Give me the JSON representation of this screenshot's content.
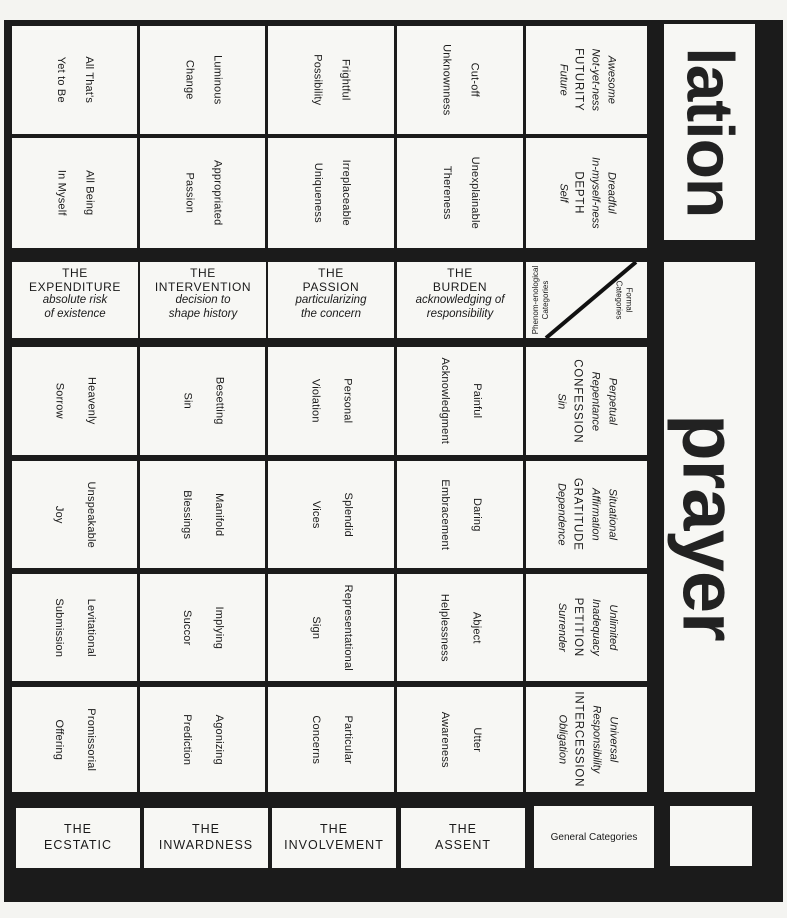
{
  "banners": {
    "top": "lation",
    "right": "prayer"
  },
  "corner": {
    "formal": "Formal Categories",
    "phenom": "Phenom-enological Categories"
  },
  "upper_headers": [
    {
      "l1": "Awesome",
      "l2": "Not-yet-ness",
      "cap": "FUTURITY",
      "tail": "Future"
    },
    {
      "l1": "Dreadful",
      "l2": "In-myself-ness",
      "cap": "DEPTH",
      "tail": "Self"
    }
  ],
  "upper_rows": [
    {
      "c1": [
        "Cut-off",
        "Unknownness"
      ],
      "c2": [
        "Unexplainable",
        "Thereness"
      ]
    },
    {
      "c1": [
        "Frightful",
        "Possibility"
      ],
      "c2": [
        "Irreplaceable",
        "Uniqueness"
      ]
    },
    {
      "c1": [
        "Luminous",
        "Change"
      ],
      "c2": [
        "Appropriated",
        "Passion"
      ]
    },
    {
      "c1": [
        "All That's",
        "Yet to Be"
      ],
      "c2": [
        "All Being",
        "In Myself"
      ]
    }
  ],
  "middle_headers": [
    {
      "title": [
        "THE",
        "BURDEN"
      ],
      "sub": [
        "acknowledging of",
        "responsibility"
      ]
    },
    {
      "title": [
        "THE",
        "PASSION"
      ],
      "sub": [
        "particularizing",
        "the concern"
      ]
    },
    {
      "title": [
        "THE",
        "INTERVENTION"
      ],
      "sub": [
        "decision to",
        "shape history"
      ]
    },
    {
      "title": [
        "THE",
        "EXPENDITURE"
      ],
      "sub": [
        "absolute risk",
        "of existence"
      ]
    }
  ],
  "lower_headers": [
    {
      "l1": "Perpetual",
      "l2": "Repentance",
      "cap": "CONFESSION",
      "tail": "Sin"
    },
    {
      "l1": "Situational",
      "l2": "Affirmation",
      "cap": "GRATITUDE",
      "tail": "Dependence"
    },
    {
      "l1": "Unlimited",
      "l2": "Inadequacy",
      "cap": "PETITION",
      "tail": "Surrender"
    },
    {
      "l1": "Universal",
      "l2": "Responsibility",
      "cap": "INTERCESSION",
      "tail": "Obligation"
    }
  ],
  "lower_rows": [
    {
      "cells": [
        [
          "Painful",
          "Acknowledgment"
        ],
        [
          "Daring",
          "Embracement"
        ],
        [
          "Abject",
          "Helplessness"
        ],
        [
          "Utter",
          "Awareness"
        ]
      ]
    },
    {
      "cells": [
        [
          "Personal",
          "Violation"
        ],
        [
          "Splendid",
          "Vices"
        ],
        [
          "Representational",
          "Sign"
        ],
        [
          "Particular",
          "Concerns"
        ]
      ]
    },
    {
      "cells": [
        [
          "Besetting",
          "Sin"
        ],
        [
          "Manifold",
          "Blessings"
        ],
        [
          "Implying",
          "Succor"
        ],
        [
          "Agonizing",
          "Prediction"
        ]
      ]
    },
    {
      "cells": [
        [
          "Heavenly",
          "Sorrow"
        ],
        [
          "Unspeakable",
          "Joy"
        ],
        [
          "Levitational",
          "Submission"
        ],
        [
          "Promissorial",
          "Offering"
        ]
      ]
    }
  ],
  "bottom": {
    "general": "General Categories",
    "items": [
      [
        "THE",
        "ASSENT"
      ],
      [
        "THE",
        "INVOLVEMENT"
      ],
      [
        "THE",
        "INWARDNESS"
      ],
      [
        "THE",
        "ECSTATIC"
      ]
    ]
  }
}
